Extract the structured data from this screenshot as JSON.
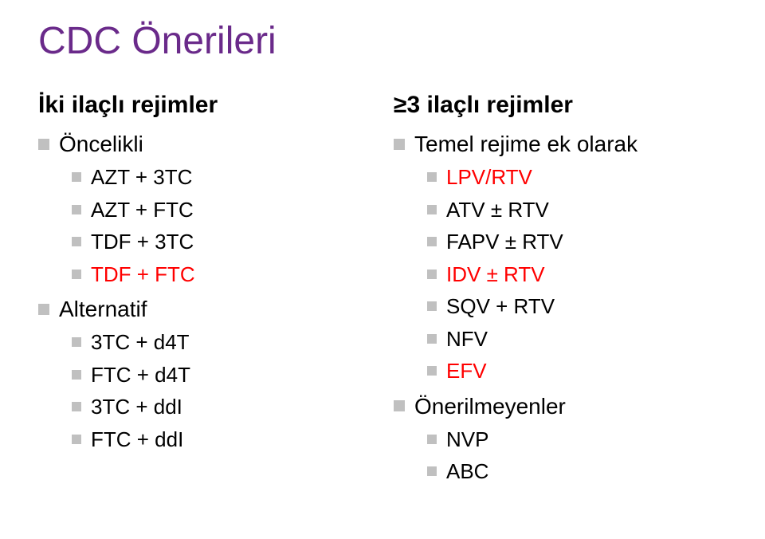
{
  "title": {
    "text": "CDC Önerileri",
    "color": "#6a2a8a"
  },
  "accent_color": "#ff0000",
  "bullet_color": "#c0c0c0",
  "left": {
    "heading": "İki ilaçlı rejimler",
    "groups": [
      {
        "label": "Öncelikli",
        "items": [
          {
            "text": "AZT + 3TC",
            "color": "#000000"
          },
          {
            "text": "AZT + FTC",
            "color": "#000000"
          },
          {
            "text": "TDF + 3TC",
            "color": "#000000"
          },
          {
            "text": "TDF + FTC",
            "color": "#ff0000"
          }
        ]
      },
      {
        "label": "Alternatif",
        "items": [
          {
            "text": "3TC + d4T",
            "color": "#000000"
          },
          {
            "text": "FTC + d4T",
            "color": "#000000"
          },
          {
            "text": "3TC + ddI",
            "color": "#000000"
          },
          {
            "text": "FTC + ddI",
            "color": "#000000"
          }
        ]
      }
    ]
  },
  "right": {
    "heading": "≥3 ilaçlı rejimler",
    "groups": [
      {
        "label": "Temel rejime ek olarak",
        "items": [
          {
            "text": "LPV/RTV",
            "color": "#ff0000"
          },
          {
            "text": "ATV ± RTV",
            "color": "#000000"
          },
          {
            "text": "FAPV ± RTV",
            "color": "#000000"
          },
          {
            "text": "IDV ± RTV",
            "color": "#ff0000"
          },
          {
            "text": "SQV + RTV",
            "color": "#000000"
          },
          {
            "text": "NFV",
            "color": "#000000"
          },
          {
            "text": "EFV",
            "color": "#ff0000"
          }
        ]
      },
      {
        "label": "Önerilmeyenler",
        "items": [
          {
            "text": "NVP",
            "color": "#000000"
          },
          {
            "text": "ABC",
            "color": "#000000"
          }
        ]
      }
    ]
  }
}
